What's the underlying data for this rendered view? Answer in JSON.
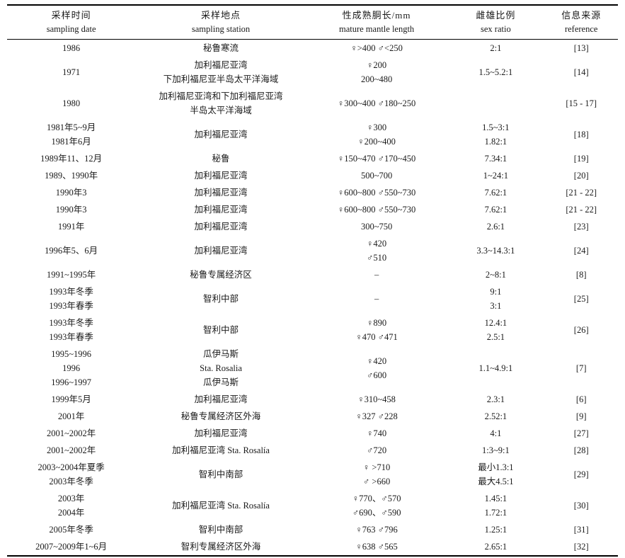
{
  "colors": {
    "background": "#ffffff",
    "text": "#1a1a1a",
    "rule": "#000000"
  },
  "table": {
    "columns": [
      {
        "key": "date",
        "zh": "采样时间",
        "en": "sampling date"
      },
      {
        "key": "station",
        "zh": "采样地点",
        "en": "sampling station"
      },
      {
        "key": "mantle",
        "zh": "性成熟胴长/mm",
        "en": "mature mantle length"
      },
      {
        "key": "ratio",
        "zh": "雌雄比例",
        "en": "sex ratio"
      },
      {
        "key": "ref",
        "zh": "信息来源",
        "en": "reference"
      }
    ],
    "rows": [
      {
        "date": [
          "1986"
        ],
        "station": [
          "秘鲁寒流"
        ],
        "mantle": [
          "♀>400 ♂<250"
        ],
        "ratio": [
          "2:1"
        ],
        "ref": [
          "[13]"
        ]
      },
      {
        "date": [
          "1971"
        ],
        "station": [
          "加利福尼亚湾",
          "下加利福尼亚半岛太平洋海域"
        ],
        "mantle": [
          "♀200",
          "200~480"
        ],
        "ratio": [
          "1.5~5.2:1"
        ],
        "ref": [
          "[14]"
        ]
      },
      {
        "date": [
          "1980"
        ],
        "station": [
          "加利福尼亚湾和下加利福尼亚湾",
          "半岛太平洋海域"
        ],
        "mantle": [
          "♀300~400 ♂180~250"
        ],
        "ratio": [
          ""
        ],
        "ref": [
          "[15 - 17]"
        ]
      },
      {
        "date": [
          "1981年5~9月",
          "1981年6月"
        ],
        "station": [
          "加利福尼亚湾"
        ],
        "mantle": [
          "♀300",
          "♀200~400"
        ],
        "ratio": [
          "1.5~3:1",
          "1.82:1"
        ],
        "ref": [
          "[18]"
        ]
      },
      {
        "date": [
          "1989年11、12月"
        ],
        "station": [
          "秘鲁"
        ],
        "mantle": [
          "♀150~470 ♂170~450"
        ],
        "ratio": [
          "7.34:1"
        ],
        "ref": [
          "[19]"
        ]
      },
      {
        "date": [
          "1989、1990年"
        ],
        "station": [
          "加利福尼亚湾"
        ],
        "mantle": [
          "500~700"
        ],
        "ratio": [
          "1~24:1"
        ],
        "ref": [
          "[20]"
        ]
      },
      {
        "date": [
          "1990年3"
        ],
        "station": [
          "加利福尼亚湾"
        ],
        "mantle": [
          "♀600~800 ♂550~730"
        ],
        "ratio": [
          "7.62:1"
        ],
        "ref": [
          "[21 - 22]"
        ]
      },
      {
        "date": [
          "1990年3"
        ],
        "station": [
          "加利福尼亚湾"
        ],
        "mantle": [
          "♀600~800 ♂550~730"
        ],
        "ratio": [
          "7.62:1"
        ],
        "ref": [
          "[21 - 22]"
        ]
      },
      {
        "date": [
          "1991年"
        ],
        "station": [
          "加利福尼亚湾"
        ],
        "mantle": [
          "300~750"
        ],
        "ratio": [
          "2.6:1"
        ],
        "ref": [
          "[23]"
        ]
      },
      {
        "date": [
          "1996年5、6月"
        ],
        "station": [
          "加利福尼亚湾"
        ],
        "mantle": [
          "♀420",
          "♂510"
        ],
        "ratio": [
          "3.3~14.3:1"
        ],
        "ref": [
          "[24]"
        ]
      },
      {
        "date": [
          "1991~1995年"
        ],
        "station": [
          "秘鲁专属经济区"
        ],
        "mantle": [
          "–"
        ],
        "ratio": [
          "2~8:1"
        ],
        "ref": [
          "[8]"
        ]
      },
      {
        "date": [
          "1993年冬季",
          "1993年春季"
        ],
        "station": [
          "智利中部"
        ],
        "mantle": [
          "–"
        ],
        "ratio": [
          "9:1",
          "3:1"
        ],
        "ref": [
          "[25]"
        ]
      },
      {
        "date": [
          "1993年冬季",
          "1993年春季"
        ],
        "station": [
          "智利中部"
        ],
        "mantle": [
          "♀890",
          "♀470 ♂471"
        ],
        "ratio": [
          "12.4:1",
          "2.5:1"
        ],
        "ref": [
          "[26]"
        ]
      },
      {
        "date": [
          "1995~1996",
          "1996",
          "1996~1997"
        ],
        "station": [
          "瓜伊马斯",
          "Sta. Rosalia",
          "瓜伊马斯"
        ],
        "mantle": [
          "♀420",
          "♂600"
        ],
        "ratio": [
          "1.1~4.9:1"
        ],
        "ref": [
          "[7]"
        ]
      },
      {
        "date": [
          "1999年5月"
        ],
        "station": [
          "加利福尼亚湾"
        ],
        "mantle": [
          "♀310~458"
        ],
        "ratio": [
          "2.3:1"
        ],
        "ref": [
          "[6]"
        ]
      },
      {
        "date": [
          "2001年"
        ],
        "station": [
          "秘鲁专属经济区外海"
        ],
        "mantle": [
          "♀327 ♂228"
        ],
        "ratio": [
          "2.52:1"
        ],
        "ref": [
          "[9]"
        ]
      },
      {
        "date": [
          "2001~2002年"
        ],
        "station": [
          "加利福尼亚湾"
        ],
        "mantle": [
          "♀740"
        ],
        "ratio": [
          "4:1"
        ],
        "ref": [
          "[27]"
        ]
      },
      {
        "date": [
          "2001~2002年"
        ],
        "station": [
          "加利福尼亚湾 Sta. Rosalía"
        ],
        "mantle": [
          "♂720"
        ],
        "ratio": [
          "1:3~9:1"
        ],
        "ref": [
          "[28]"
        ]
      },
      {
        "date": [
          "2003~2004年夏季",
          "2003年冬季"
        ],
        "station": [
          "智利中南部"
        ],
        "mantle": [
          "♀ >710",
          "♂ >660"
        ],
        "ratio": [
          "最小1.3:1",
          "最大4.5:1"
        ],
        "ref": [
          "[29]"
        ]
      },
      {
        "date": [
          "2003年",
          "2004年"
        ],
        "station": [
          "加利福尼亚湾 Sta. Rosalía"
        ],
        "mantle": [
          "♀770、♂570",
          "♂690、♂590"
        ],
        "ratio": [
          "1.45:1",
          "1.72:1"
        ],
        "ref": [
          "[30]"
        ]
      },
      {
        "date": [
          "2005年冬季"
        ],
        "station": [
          "智利中南部"
        ],
        "mantle": [
          "♀763 ♂796"
        ],
        "ratio": [
          "1.25:1"
        ],
        "ref": [
          "[31]"
        ]
      },
      {
        "date": [
          "2007~2009年1~6月"
        ],
        "station": [
          "智利专属经济区外海"
        ],
        "mantle": [
          "♀638 ♂565"
        ],
        "ratio": [
          "2.65:1"
        ],
        "ref": [
          "[32]"
        ]
      }
    ]
  }
}
